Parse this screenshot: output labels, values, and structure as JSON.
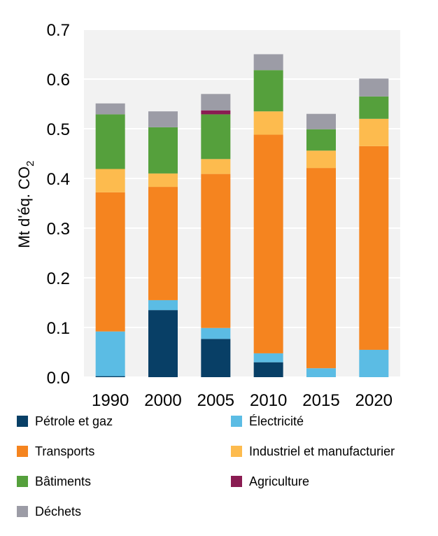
{
  "chart_data": {
    "type": "bar",
    "stacked": true,
    "categories": [
      "1990",
      "2000",
      "2005",
      "2010",
      "2015",
      "2020"
    ],
    "ylabel": "Mt d'éq. CO",
    "ylabel_subscript": "2",
    "ylim": [
      0,
      0.7
    ],
    "yticks": [
      "0.0",
      "0.1",
      "0.2",
      "0.3",
      "0.4",
      "0.5",
      "0.6",
      "0.7"
    ],
    "grid": true,
    "legend_position": "bottom",
    "series": [
      {
        "name": "Pétrole et gaz",
        "color": "#083F66",
        "values": [
          0.002,
          0.135,
          0.077,
          0.03,
          0.0,
          0.0
        ]
      },
      {
        "name": "Électricité",
        "color": "#5BBCE4",
        "values": [
          0.09,
          0.02,
          0.022,
          0.018,
          0.018,
          0.055
        ]
      },
      {
        "name": "Transports",
        "color": "#F5841F",
        "values": [
          0.28,
          0.228,
          0.31,
          0.44,
          0.403,
          0.41
        ]
      },
      {
        "name": "Industriel et manufacturier",
        "color": "#FDBB4E",
        "values": [
          0.047,
          0.027,
          0.03,
          0.047,
          0.035,
          0.055
        ]
      },
      {
        "name": "Bâtiments",
        "color": "#55A03C",
        "values": [
          0.11,
          0.093,
          0.09,
          0.083,
          0.043,
          0.045
        ]
      },
      {
        "name": "Agriculture",
        "color": "#8A1C52",
        "values": [
          0.0,
          0.0,
          0.008,
          0.0,
          0.0,
          0.0
        ]
      },
      {
        "name": "Déchets",
        "color": "#9C9CA6",
        "values": [
          0.022,
          0.032,
          0.033,
          0.032,
          0.031,
          0.036
        ]
      }
    ]
  }
}
